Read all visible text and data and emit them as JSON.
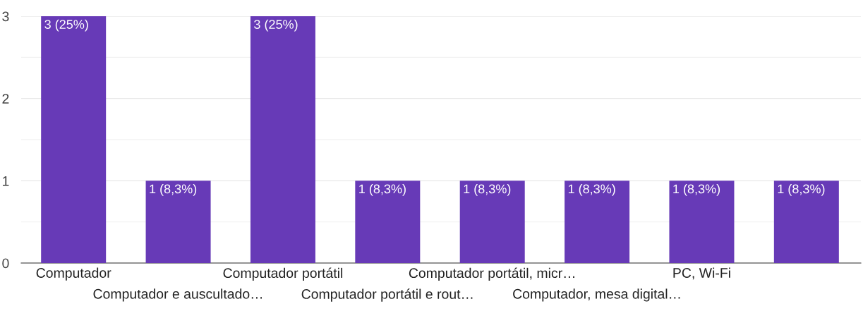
{
  "chart_data": {
    "type": "bar",
    "categories": [
      "Computador",
      "Computador e auscultado…",
      "Computador portátil",
      "Computador portátil e rout…",
      "Computador portátil, micr…",
      "Computador, mesa digital…",
      "PC, Wi-Fi",
      null
    ],
    "values": [
      3,
      1,
      3,
      1,
      1,
      1,
      1,
      1
    ],
    "color": "#673ab7",
    "value_labels": [
      "3 (25%)",
      "1 (8,3%)",
      "3 (25%)",
      "1 (8,3%)",
      "1 (8,3%)",
      "1 (8,3%)",
      "1 (8,3%)",
      "1 (8,3%)"
    ],
    "ylim": [
      0,
      3
    ],
    "yticks": [
      0,
      {
        "value": 0.5,
        "label": null
      },
      1,
      {
        "value": 1.5,
        "label": null
      },
      2,
      {
        "value": 2.5,
        "label": null
      },
      3
    ],
    "grid": "y"
  }
}
